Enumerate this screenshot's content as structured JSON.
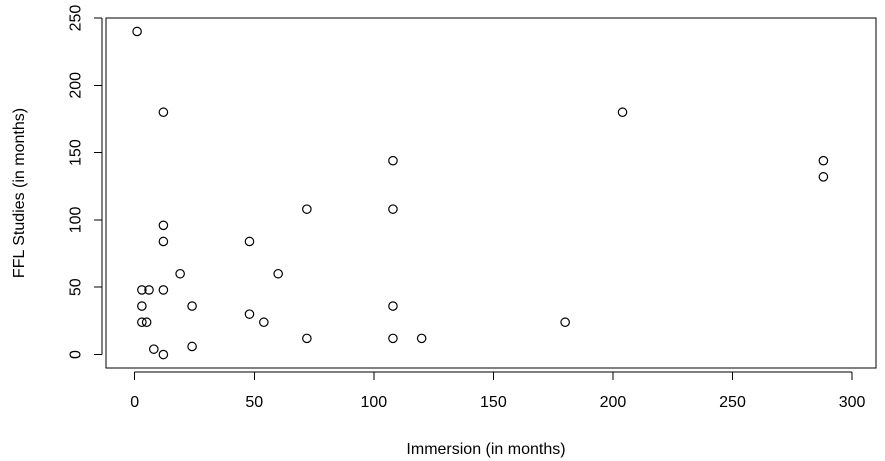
{
  "chart_data": {
    "type": "scatter",
    "title": "",
    "xlabel": "Immersion (in months)",
    "ylabel": "FFL Studies (in months)",
    "xlim": [
      -12,
      310
    ],
    "ylim": [
      -10,
      250
    ],
    "xticks": [
      0,
      50,
      100,
      150,
      200,
      250,
      300
    ],
    "yticks": [
      0,
      50,
      100,
      150,
      200,
      250
    ],
    "grid": false,
    "legend": "none",
    "marker_color": "#000000",
    "points": [
      {
        "x": 1,
        "y": 240
      },
      {
        "x": 12,
        "y": 180
      },
      {
        "x": 204,
        "y": 180
      },
      {
        "x": 108,
        "y": 144
      },
      {
        "x": 288,
        "y": 144
      },
      {
        "x": 288,
        "y": 132
      },
      {
        "x": 72,
        "y": 108
      },
      {
        "x": 108,
        "y": 108
      },
      {
        "x": 12,
        "y": 96
      },
      {
        "x": 12,
        "y": 84
      },
      {
        "x": 48,
        "y": 84
      },
      {
        "x": 19,
        "y": 60
      },
      {
        "x": 60,
        "y": 60
      },
      {
        "x": 3,
        "y": 48
      },
      {
        "x": 6,
        "y": 48
      },
      {
        "x": 12,
        "y": 48
      },
      {
        "x": 3,
        "y": 36
      },
      {
        "x": 24,
        "y": 36
      },
      {
        "x": 108,
        "y": 36
      },
      {
        "x": 48,
        "y": 30
      },
      {
        "x": 3,
        "y": 24
      },
      {
        "x": 5,
        "y": 24
      },
      {
        "x": 54,
        "y": 24
      },
      {
        "x": 180,
        "y": 24
      },
      {
        "x": 72,
        "y": 12
      },
      {
        "x": 108,
        "y": 12
      },
      {
        "x": 120,
        "y": 12
      },
      {
        "x": 24,
        "y": 6
      },
      {
        "x": 8,
        "y": 4
      },
      {
        "x": 12,
        "y": 0
      }
    ]
  }
}
